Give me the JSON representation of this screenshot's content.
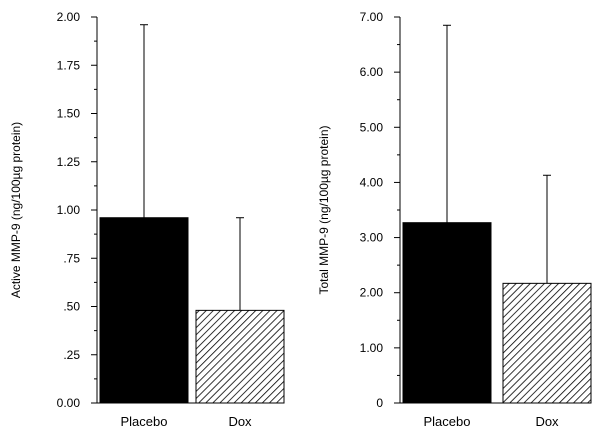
{
  "chart_data": [
    {
      "type": "bar",
      "categories": [
        "Placebo",
        "Dox"
      ],
      "values": [
        0.96,
        0.48
      ],
      "error_upper": [
        1.96,
        0.96
      ],
      "ylabel": "Active MMP-9 (ng/100µg protein)",
      "ylim": [
        0,
        2.0
      ],
      "ticks": [
        "0.00",
        ".25",
        ".50",
        ".75",
        "1.00",
        "1.25",
        "1.50",
        "1.75",
        "2.00"
      ],
      "tick_values": [
        0,
        0.25,
        0.5,
        0.75,
        1.0,
        1.25,
        1.5,
        1.75,
        2.0
      ],
      "grid": false,
      "bar_fills": [
        "solid-black",
        "diagonal-hatch"
      ]
    },
    {
      "type": "bar",
      "categories": [
        "Placebo",
        "Dox"
      ],
      "values": [
        3.27,
        2.17
      ],
      "error_upper": [
        6.85,
        4.13
      ],
      "ylabel": "Total MMP-9 (ng/100µg protein)",
      "ylim": [
        0,
        7.0
      ],
      "ticks": [
        "0",
        "1.00",
        "2.00",
        "3.00",
        "4.00",
        "5.00",
        "6.00",
        "7.00"
      ],
      "tick_values": [
        0,
        1,
        2,
        3,
        4,
        5,
        6,
        7
      ],
      "grid": false,
      "bar_fills": [
        "solid-black",
        "diagonal-hatch"
      ]
    }
  ]
}
